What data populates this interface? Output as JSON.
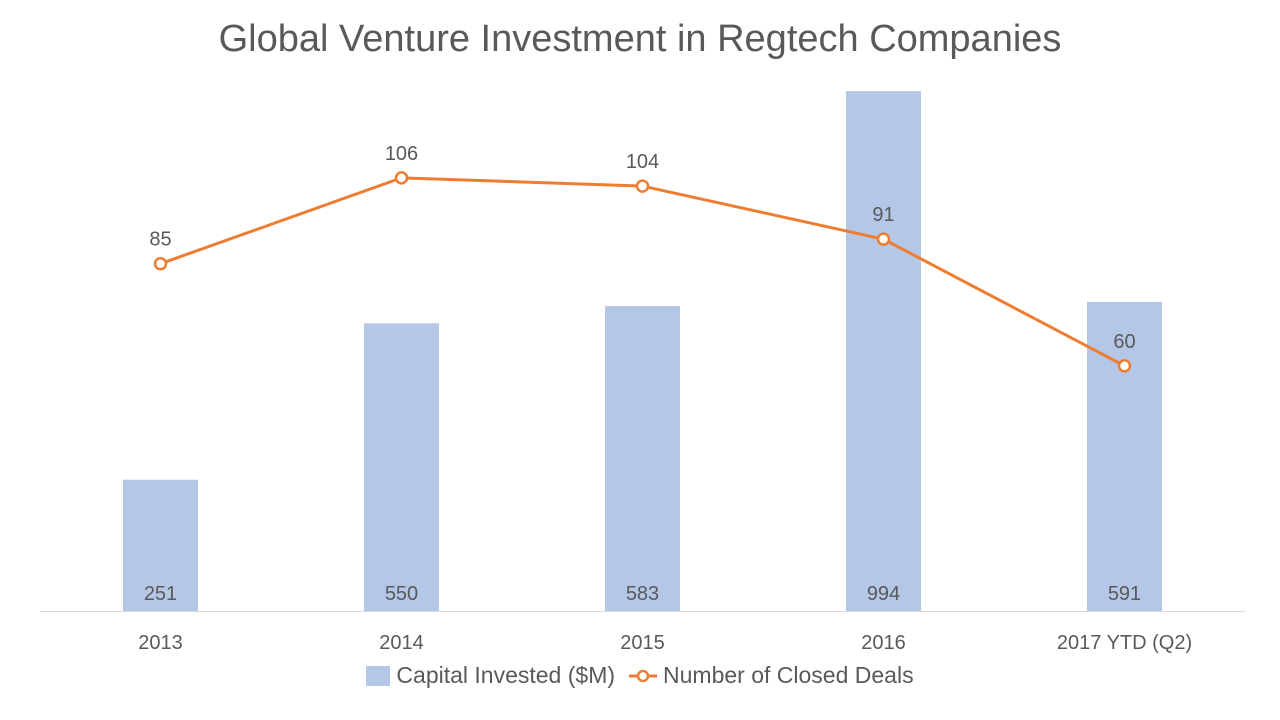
{
  "chart_data": {
    "type": "bar",
    "title": "Global Venture Investment in Regtech Companies",
    "categories": [
      "2013",
      "2014",
      "2015",
      "2016",
      "2017 YTD (Q2)"
    ],
    "series": [
      {
        "name": "Capital Invested ($M)",
        "type": "bar",
        "axis": "primary",
        "color": "#b4c7e7",
        "values": [
          251,
          550,
          583,
          994,
          591
        ]
      },
      {
        "name": "Number of Closed Deals",
        "type": "line",
        "axis": "secondary",
        "color": "#ed7d31",
        "marker": "hollow-circle",
        "values": [
          85,
          106,
          104,
          91,
          60
        ]
      }
    ],
    "primary_ylim": [
      0,
      1000
    ],
    "secondary_ylim": [
      0,
      128
    ],
    "grid": false,
    "axes_visible": false,
    "legend": "bottom",
    "data_labels": {
      "bars": "inside-base",
      "line": "above"
    }
  },
  "colors": {
    "text": "#595959",
    "axis_line": "#d9d9d9"
  }
}
